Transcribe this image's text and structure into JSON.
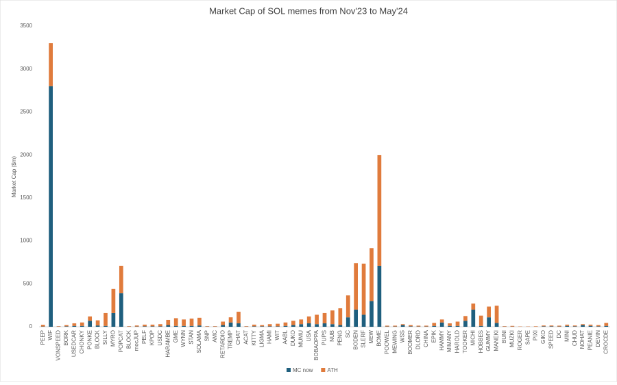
{
  "chart_data": {
    "type": "stacked_bar",
    "title": "Market Cap of SOL memes from Nov'23 to May'24",
    "y_label": "Market Cap ($m)",
    "categories": [
      "PEEP",
      "WIF",
      "VONSPEED",
      "BORK",
      "USEDCAR",
      "CHONKY",
      "PONKE",
      "BLOCK",
      "SILLY",
      "MYRO",
      "POPCAT",
      "BLOCK",
      "mocJUP",
      "PELF",
      "KPOP",
      "USDC",
      "HARAMBE",
      "GME",
      "WYNN",
      "STAN",
      "SOLAMA",
      "SNP",
      "AMC",
      "RETARDIO",
      "TREMP",
      "CHAT",
      "ACAT",
      "KITTY",
      "LIGMA",
      "HAMI",
      "WIT",
      "AABL",
      "DUKO",
      "MUMU",
      "USA",
      "BOBAOPPA",
      "PUPS",
      "NUB",
      "PENG",
      "SC",
      "BODEN",
      "SLERF",
      "MEW",
      "BOME",
      "POOWEL",
      "MEWING",
      "WSS",
      "BOOMER",
      "DLORD",
      "CHINA",
      "EPIK",
      "HAMMY",
      "MIMANY",
      "HAROLD",
      "TOOKER",
      "MICHI",
      "HOBBES",
      "GUMMY",
      "MANEKI",
      "BUNI",
      "MUZKI",
      "ROGER",
      "SAPE",
      "PIXI",
      "GIKO",
      "SPEED",
      "DC",
      "MINI",
      "CHUD",
      "NOHAT",
      "PEANIE",
      "DEVIN",
      "CROCDE"
    ],
    "series": [
      {
        "name": "MC now",
        "color": "#1f5f7e",
        "values": [
          3,
          2800,
          2,
          5,
          10,
          10,
          70,
          15,
          10,
          160,
          390,
          2,
          3,
          5,
          5,
          5,
          20,
          10,
          10,
          10,
          15,
          2,
          2,
          20,
          50,
          40,
          2,
          5,
          5,
          5,
          5,
          10,
          20,
          30,
          40,
          30,
          40,
          30,
          20,
          110,
          200,
          140,
          300,
          710,
          3,
          3,
          20,
          5,
          3,
          3,
          10,
          50,
          10,
          10,
          70,
          200,
          10,
          110,
          45,
          2,
          2,
          1,
          1,
          1,
          5,
          5,
          3,
          10,
          5,
          20,
          10,
          5,
          10
        ]
      },
      {
        "name": "ATH",
        "color": "#e07b3c",
        "values": [
          20,
          500,
          5,
          15,
          30,
          40,
          50,
          60,
          150,
          280,
          320,
          5,
          12,
          20,
          20,
          25,
          60,
          90,
          75,
          85,
          90,
          5,
          5,
          40,
          60,
          135,
          5,
          20,
          15,
          25,
          30,
          40,
          50,
          55,
          80,
          110,
          120,
          160,
          195,
          255,
          540,
          595,
          615,
          1290,
          10,
          10,
          10,
          15,
          10,
          10,
          35,
          35,
          30,
          50,
          55,
          70,
          120,
          125,
          200,
          5,
          8,
          3,
          3,
          5,
          10,
          10,
          10,
          15,
          10,
          10,
          15,
          15,
          35
        ]
      }
    ],
    "ylim": [
      0,
      3500
    ],
    "yticks": [
      0,
      500,
      1000,
      1500,
      2000,
      2500,
      3000,
      3500
    ],
    "grid": false,
    "legend": "bottom"
  }
}
